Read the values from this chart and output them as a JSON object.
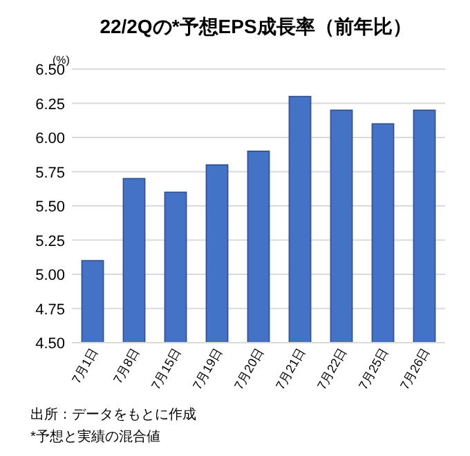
{
  "chart_data": {
    "type": "bar",
    "title": "22/2Qの*予想EPS成長率（前年比）",
    "ylabel": "(%)",
    "categories": [
      "7月1日",
      "7月8日",
      "7月15日",
      "7月19日",
      "7月20日",
      "7月21日",
      "7月22日",
      "7月25日",
      "7月26日"
    ],
    "values": [
      5.1,
      5.7,
      5.6,
      5.8,
      5.9,
      6.3,
      6.2,
      6.1,
      6.2
    ],
    "color": "#4472c4",
    "ylim": [
      4.5,
      6.5
    ],
    "yticks": [
      {
        "value": 4.5,
        "label": "4.50"
      },
      {
        "value": 4.75,
        "label": "4.75"
      },
      {
        "value": 5,
        "label": "5.00"
      },
      {
        "value": 5.25,
        "label": "5.25"
      },
      {
        "value": 5.5,
        "label": "5.50"
      },
      {
        "value": 5.75,
        "label": "5.75"
      },
      {
        "value": 6,
        "label": "6.00"
      },
      {
        "value": 6.25,
        "label": "6.25"
      },
      {
        "value": 6.5,
        "label": "6.50"
      }
    ],
    "grid": "y",
    "annotations": [
      "出所：データをもとに作成",
      "*予想と実績の混合値"
    ]
  }
}
